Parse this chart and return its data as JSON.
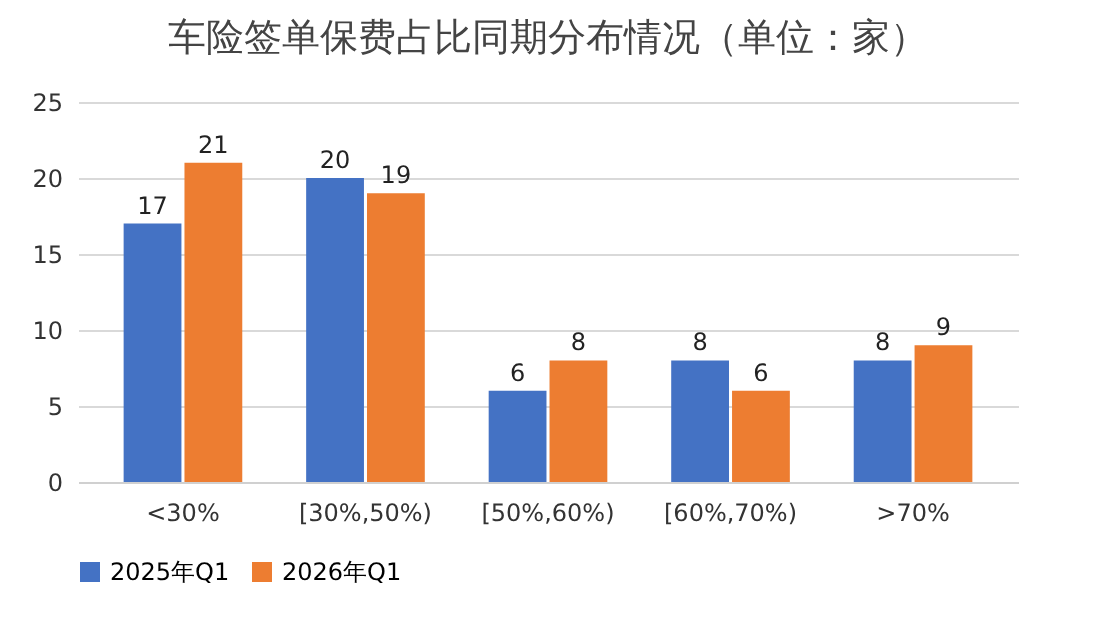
{
  "chart_data": {
    "type": "bar",
    "title": "车险签单保费占比同期分布情况（单位：家）",
    "categories": [
      "<30%",
      "[30%,50%)",
      "[50%,60%)",
      "[60%,70%)",
      ">70%"
    ],
    "series": [
      {
        "name": "2025年Q1",
        "color": "#4472c4",
        "values": [
          17,
          20,
          6,
          8,
          8
        ]
      },
      {
        "name": "2026年Q1",
        "color": "#ed7d31",
        "values": [
          21,
          19,
          8,
          6,
          9
        ]
      }
    ],
    "ylim": [
      0,
      25
    ],
    "yticks": [
      0,
      5,
      10,
      15,
      20,
      25
    ],
    "grid": "y",
    "legend": "bottom",
    "data_labels": true
  }
}
